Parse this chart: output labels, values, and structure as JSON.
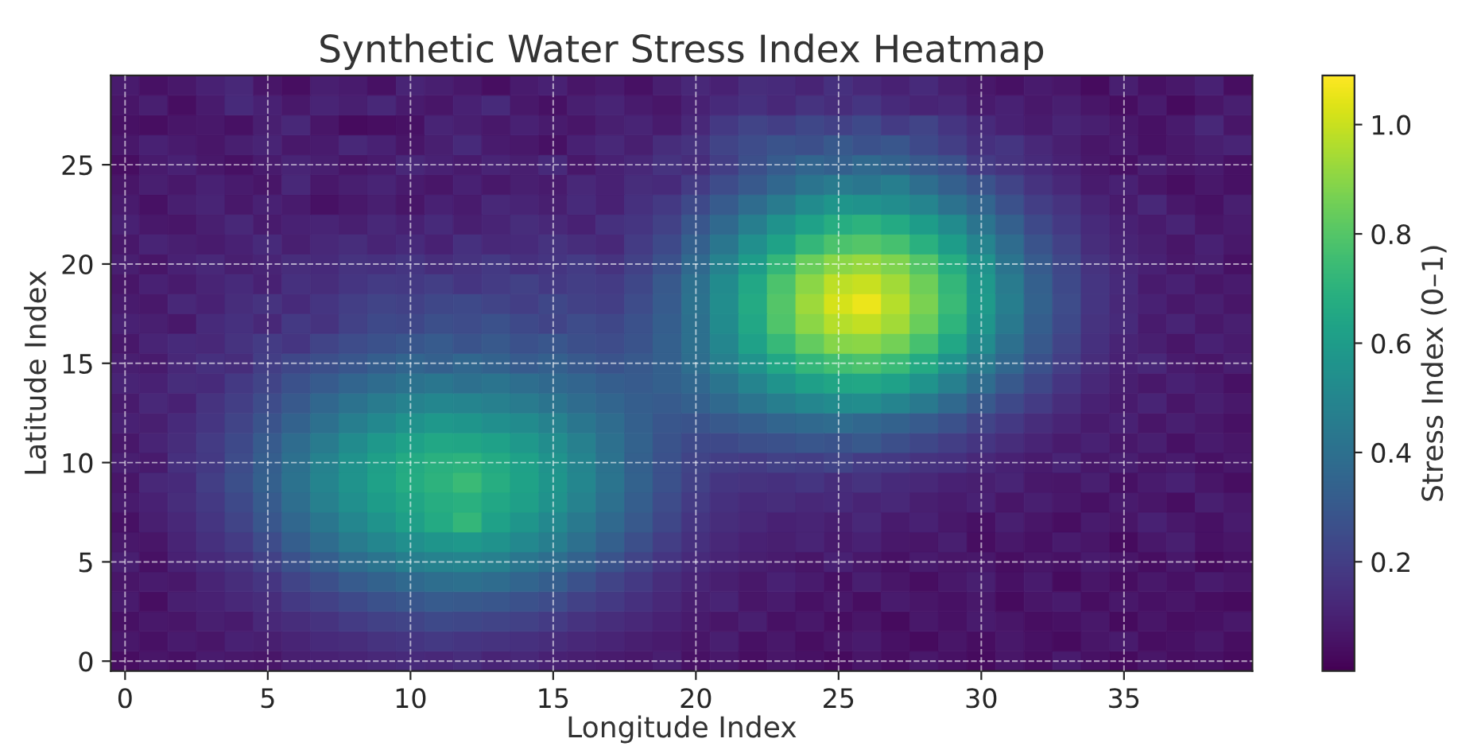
{
  "chart_data": {
    "type": "heatmap",
    "title": "Synthetic Water Stress Index Heatmap",
    "xlabel": "Longitude Index",
    "ylabel": "Latitude Index",
    "clabel": "Stress Index (0–1)",
    "categories": [
      "0",
      null,
      null,
      null,
      null,
      "5",
      null,
      null,
      null,
      null,
      "10",
      null,
      null,
      null,
      null,
      "15",
      null,
      null,
      null,
      null,
      "20",
      null,
      null,
      null,
      null,
      "25",
      null,
      null,
      null,
      null,
      "30",
      null,
      null,
      null,
      null,
      "35",
      null,
      null,
      null,
      null
    ],
    "y_categories": [
      null,
      null,
      null,
      null,
      "25",
      null,
      null,
      null,
      null,
      "20",
      null,
      null,
      null,
      null,
      "15",
      null,
      null,
      null,
      null,
      "10",
      null,
      null,
      null,
      null,
      "5",
      null,
      null,
      null,
      null,
      "0"
    ],
    "clim": [
      0.0,
      1.09
    ],
    "cticks": [
      0.2,
      0.4,
      0.6,
      0.8,
      {
        "value": 1.0,
        "label": "1.0"
      }
    ],
    "grid": true,
    "cells": [
      [
        0.08,
        0.05,
        0.07,
        0.1,
        0.12,
        0.06,
        0.04,
        0.09,
        0.08,
        0.05,
        0.11,
        0.09,
        0.07,
        0.04,
        0.08,
        0.1,
        0.06,
        0.08,
        0.05,
        0.09,
        0.12,
        0.1,
        0.14,
        0.13,
        0.11,
        0.15,
        0.12,
        0.1,
        0.13,
        0.09,
        0.07,
        0.05,
        0.08,
        0.06,
        0.03,
        0.09,
        0.05,
        0.07,
        0.1,
        0.04
      ],
      [
        0.06,
        0.09,
        0.04,
        0.08,
        0.13,
        0.1,
        0.07,
        0.11,
        0.09,
        0.12,
        0.08,
        0.06,
        0.1,
        0.13,
        0.07,
        0.05,
        0.09,
        0.11,
        0.08,
        0.06,
        0.1,
        0.13,
        0.15,
        0.12,
        0.16,
        0.14,
        0.17,
        0.13,
        0.11,
        0.12,
        0.08,
        0.1,
        0.07,
        0.09,
        0.06,
        0.04,
        0.08,
        0.03,
        0.06,
        0.09
      ],
      [
        0.05,
        0.04,
        0.06,
        0.07,
        0.05,
        0.09,
        0.12,
        0.06,
        0.03,
        0.04,
        0.05,
        0.11,
        0.09,
        0.07,
        0.1,
        0.08,
        0.06,
        0.09,
        0.11,
        0.08,
        0.12,
        0.18,
        0.22,
        0.2,
        0.23,
        0.21,
        0.24,
        0.19,
        0.22,
        0.17,
        0.13,
        0.1,
        0.08,
        0.11,
        0.09,
        0.07,
        0.05,
        0.08,
        0.12,
        0.06
      ],
      [
        0.07,
        0.1,
        0.08,
        0.06,
        0.09,
        0.11,
        0.07,
        0.08,
        0.12,
        0.1,
        0.06,
        0.09,
        0.13,
        0.08,
        0.07,
        0.05,
        0.1,
        0.12,
        0.09,
        0.14,
        0.16,
        0.22,
        0.25,
        0.28,
        0.26,
        0.3,
        0.27,
        0.29,
        0.24,
        0.2,
        0.15,
        0.17,
        0.12,
        0.09,
        0.06,
        0.08,
        0.05,
        0.07,
        0.09,
        0.11
      ],
      [
        0.04,
        0.08,
        0.1,
        0.07,
        0.05,
        0.08,
        0.11,
        0.09,
        0.06,
        0.08,
        0.12,
        0.1,
        0.08,
        0.11,
        0.09,
        0.13,
        0.07,
        0.1,
        0.12,
        0.16,
        0.14,
        0.2,
        0.26,
        0.31,
        0.35,
        0.33,
        0.37,
        0.34,
        0.3,
        0.27,
        0.19,
        0.16,
        0.13,
        0.1,
        0.07,
        0.05,
        0.09,
        0.06,
        0.08,
        0.05
      ],
      [
        0.06,
        0.09,
        0.07,
        0.1,
        0.08,
        0.06,
        0.12,
        0.07,
        0.09,
        0.11,
        0.08,
        0.06,
        0.1,
        0.07,
        0.09,
        0.08,
        0.12,
        0.1,
        0.14,
        0.13,
        0.19,
        0.25,
        0.3,
        0.36,
        0.42,
        0.45,
        0.43,
        0.46,
        0.39,
        0.33,
        0.28,
        0.22,
        0.16,
        0.12,
        0.08,
        0.1,
        0.06,
        0.04,
        0.07,
        0.05
      ],
      [
        0.08,
        0.05,
        0.09,
        0.11,
        0.07,
        0.1,
        0.08,
        0.05,
        0.07,
        0.09,
        0.06,
        0.1,
        0.08,
        0.12,
        0.11,
        0.09,
        0.13,
        0.1,
        0.15,
        0.18,
        0.24,
        0.31,
        0.38,
        0.45,
        0.52,
        0.57,
        0.55,
        0.53,
        0.49,
        0.41,
        0.35,
        0.27,
        0.2,
        0.16,
        0.11,
        0.08,
        0.12,
        0.07,
        0.05,
        0.09
      ],
      [
        0.1,
        0.07,
        0.06,
        0.09,
        0.12,
        0.08,
        0.1,
        0.11,
        0.09,
        0.12,
        0.1,
        0.13,
        0.09,
        0.11,
        0.14,
        0.12,
        0.1,
        0.15,
        0.17,
        0.21,
        0.29,
        0.37,
        0.46,
        0.55,
        0.62,
        0.68,
        0.7,
        0.66,
        0.6,
        0.52,
        0.42,
        0.33,
        0.24,
        0.18,
        0.13,
        0.1,
        0.08,
        0.11,
        0.06,
        0.08
      ],
      [
        0.07,
        0.11,
        0.09,
        0.08,
        0.1,
        0.13,
        0.09,
        0.12,
        0.14,
        0.11,
        0.13,
        0.1,
        0.15,
        0.12,
        0.13,
        0.16,
        0.14,
        0.12,
        0.19,
        0.24,
        0.33,
        0.43,
        0.54,
        0.63,
        0.72,
        0.78,
        0.8,
        0.77,
        0.69,
        0.6,
        0.49,
        0.38,
        0.28,
        0.21,
        0.14,
        0.11,
        0.09,
        0.06,
        0.1,
        0.07
      ],
      [
        0.09,
        0.06,
        0.1,
        0.12,
        0.09,
        0.11,
        0.14,
        0.13,
        0.16,
        0.15,
        0.17,
        0.14,
        0.16,
        0.18,
        0.15,
        0.17,
        0.19,
        0.16,
        0.21,
        0.27,
        0.37,
        0.48,
        0.6,
        0.72,
        0.84,
        0.9,
        0.92,
        0.88,
        0.8,
        0.68,
        0.55,
        0.42,
        0.31,
        0.23,
        0.16,
        0.12,
        0.1,
        0.07,
        0.09,
        0.05
      ],
      [
        0.06,
        0.1,
        0.08,
        0.11,
        0.13,
        0.1,
        0.15,
        0.14,
        0.17,
        0.19,
        0.18,
        0.2,
        0.17,
        0.19,
        0.21,
        0.18,
        0.2,
        0.19,
        0.23,
        0.3,
        0.4,
        0.52,
        0.65,
        0.78,
        0.9,
        0.98,
        1.0,
        0.94,
        0.85,
        0.72,
        0.58,
        0.45,
        0.33,
        0.24,
        0.17,
        0.13,
        0.08,
        0.1,
        0.06,
        0.08
      ],
      [
        0.08,
        0.07,
        0.12,
        0.1,
        0.14,
        0.16,
        0.13,
        0.17,
        0.2,
        0.22,
        0.21,
        0.23,
        0.24,
        0.22,
        0.2,
        0.23,
        0.21,
        0.2,
        0.25,
        0.31,
        0.41,
        0.53,
        0.66,
        0.8,
        0.93,
        1.02,
        1.06,
        0.97,
        0.87,
        0.74,
        0.59,
        0.46,
        0.34,
        0.25,
        0.17,
        0.12,
        0.1,
        0.07,
        0.09,
        0.06
      ],
      [
        0.1,
        0.09,
        0.07,
        0.13,
        0.15,
        0.12,
        0.18,
        0.16,
        0.21,
        0.24,
        0.23,
        0.26,
        0.25,
        0.27,
        0.24,
        0.22,
        0.25,
        0.23,
        0.27,
        0.32,
        0.4,
        0.52,
        0.65,
        0.79,
        0.9,
        0.97,
        0.99,
        0.94,
        0.84,
        0.71,
        0.57,
        0.44,
        0.32,
        0.24,
        0.16,
        0.13,
        0.08,
        0.11,
        0.07,
        0.09
      ],
      [
        0.07,
        0.11,
        0.13,
        0.12,
        0.16,
        0.19,
        0.17,
        0.22,
        0.25,
        0.27,
        0.29,
        0.31,
        0.28,
        0.3,
        0.27,
        0.29,
        0.26,
        0.25,
        0.28,
        0.33,
        0.4,
        0.5,
        0.62,
        0.73,
        0.83,
        0.89,
        0.9,
        0.86,
        0.77,
        0.65,
        0.52,
        0.4,
        0.3,
        0.22,
        0.15,
        0.11,
        0.09,
        0.06,
        0.1,
        0.08
      ],
      [
        0.09,
        0.08,
        0.12,
        0.15,
        0.14,
        0.2,
        0.23,
        0.26,
        0.29,
        0.32,
        0.35,
        0.33,
        0.36,
        0.34,
        0.31,
        0.33,
        0.3,
        0.28,
        0.3,
        0.33,
        0.39,
        0.47,
        0.56,
        0.65,
        0.72,
        0.76,
        0.78,
        0.74,
        0.66,
        0.56,
        0.45,
        0.36,
        0.27,
        0.2,
        0.14,
        0.1,
        0.12,
        0.08,
        0.06,
        0.09
      ],
      [
        0.11,
        0.1,
        0.14,
        0.13,
        0.18,
        0.22,
        0.27,
        0.31,
        0.35,
        0.38,
        0.41,
        0.43,
        0.4,
        0.42,
        0.39,
        0.37,
        0.35,
        0.32,
        0.31,
        0.33,
        0.36,
        0.42,
        0.49,
        0.56,
        0.61,
        0.64,
        0.65,
        0.62,
        0.56,
        0.47,
        0.38,
        0.3,
        0.23,
        0.17,
        0.12,
        0.09,
        0.07,
        0.1,
        0.08,
        0.05
      ],
      [
        0.08,
        0.12,
        0.1,
        0.16,
        0.2,
        0.25,
        0.3,
        0.36,
        0.41,
        0.45,
        0.48,
        0.5,
        0.49,
        0.47,
        0.45,
        0.42,
        0.38,
        0.35,
        0.32,
        0.31,
        0.33,
        0.37,
        0.42,
        0.46,
        0.5,
        0.52,
        0.53,
        0.49,
        0.44,
        0.37,
        0.3,
        0.24,
        0.19,
        0.14,
        0.1,
        0.08,
        0.11,
        0.06,
        0.09,
        0.07
      ],
      [
        0.1,
        0.09,
        0.13,
        0.17,
        0.22,
        0.28,
        0.34,
        0.4,
        0.46,
        0.51,
        0.55,
        0.58,
        0.57,
        0.54,
        0.52,
        0.48,
        0.43,
        0.38,
        0.33,
        0.29,
        0.28,
        0.3,
        0.32,
        0.35,
        0.37,
        0.38,
        0.36,
        0.34,
        0.31,
        0.27,
        0.22,
        0.18,
        0.14,
        0.11,
        0.08,
        0.1,
        0.06,
        0.09,
        0.07,
        0.05
      ],
      [
        0.07,
        0.11,
        0.14,
        0.19,
        0.24,
        0.31,
        0.38,
        0.45,
        0.52,
        0.58,
        0.62,
        0.65,
        0.64,
        0.62,
        0.58,
        0.53,
        0.47,
        0.4,
        0.34,
        0.28,
        0.24,
        0.24,
        0.26,
        0.27,
        0.29,
        0.28,
        0.3,
        0.26,
        0.23,
        0.2,
        0.17,
        0.14,
        0.11,
        0.08,
        0.1,
        0.07,
        0.09,
        0.05,
        0.08,
        0.06
      ],
      [
        0.09,
        0.08,
        0.15,
        0.18,
        0.25,
        0.32,
        0.4,
        0.48,
        0.55,
        0.61,
        0.66,
        0.69,
        0.7,
        0.66,
        0.62,
        0.56,
        0.49,
        0.41,
        0.33,
        0.27,
        0.22,
        0.2,
        0.19,
        0.21,
        0.2,
        0.22,
        0.19,
        0.18,
        0.16,
        0.15,
        0.12,
        0.1,
        0.08,
        0.11,
        0.07,
        0.09,
        0.06,
        0.08,
        0.05,
        0.07
      ],
      [
        0.06,
        0.12,
        0.13,
        0.2,
        0.26,
        0.33,
        0.41,
        0.49,
        0.56,
        0.62,
        0.67,
        0.7,
        0.74,
        0.68,
        0.63,
        0.57,
        0.5,
        0.42,
        0.34,
        0.27,
        0.21,
        0.17,
        0.16,
        0.15,
        0.17,
        0.14,
        0.16,
        0.13,
        0.12,
        0.1,
        0.09,
        0.11,
        0.07,
        0.06,
        0.09,
        0.05,
        0.08,
        0.1,
        0.06,
        0.04
      ],
      [
        0.08,
        0.1,
        0.14,
        0.18,
        0.24,
        0.31,
        0.39,
        0.47,
        0.54,
        0.6,
        0.64,
        0.68,
        0.69,
        0.65,
        0.61,
        0.55,
        0.48,
        0.4,
        0.32,
        0.25,
        0.19,
        0.15,
        0.13,
        0.14,
        0.12,
        0.13,
        0.11,
        0.12,
        0.09,
        0.08,
        0.1,
        0.06,
        0.09,
        0.07,
        0.05,
        0.08,
        0.06,
        0.04,
        0.09,
        0.07
      ],
      [
        0.05,
        0.09,
        0.12,
        0.17,
        0.22,
        0.29,
        0.36,
        0.43,
        0.5,
        0.56,
        0.61,
        0.66,
        0.72,
        0.62,
        0.57,
        0.51,
        0.44,
        0.37,
        0.3,
        0.23,
        0.17,
        0.14,
        0.12,
        0.1,
        0.11,
        0.09,
        0.12,
        0.08,
        0.1,
        0.07,
        0.05,
        0.09,
        0.06,
        0.04,
        0.08,
        0.06,
        0.1,
        0.07,
        0.05,
        0.08
      ],
      [
        0.07,
        0.06,
        0.11,
        0.15,
        0.19,
        0.25,
        0.32,
        0.38,
        0.45,
        0.5,
        0.54,
        0.57,
        0.58,
        0.55,
        0.51,
        0.46,
        0.4,
        0.33,
        0.26,
        0.2,
        0.15,
        0.12,
        0.1,
        0.09,
        0.11,
        0.08,
        0.1,
        0.07,
        0.06,
        0.09,
        0.04,
        0.07,
        0.05,
        0.08,
        0.06,
        0.03,
        0.07,
        0.09,
        0.05,
        0.06
      ],
      [
        0.09,
        0.05,
        0.1,
        0.13,
        0.16,
        0.21,
        0.27,
        0.32,
        0.38,
        0.42,
        0.46,
        0.48,
        0.49,
        0.47,
        0.43,
        0.39,
        0.34,
        0.28,
        0.22,
        0.17,
        0.13,
        0.11,
        0.09,
        0.08,
        0.06,
        0.1,
        0.07,
        0.05,
        0.08,
        0.06,
        0.07,
        0.04,
        0.06,
        0.05,
        0.08,
        0.06,
        0.04,
        0.07,
        0.03,
        0.05
      ],
      [
        0.06,
        0.08,
        0.07,
        0.11,
        0.14,
        0.17,
        0.22,
        0.26,
        0.31,
        0.34,
        0.37,
        0.39,
        0.4,
        0.38,
        0.35,
        0.32,
        0.27,
        0.22,
        0.18,
        0.14,
        0.11,
        0.09,
        0.07,
        0.1,
        0.08,
        0.05,
        0.09,
        0.06,
        0.04,
        0.07,
        0.09,
        0.05,
        0.08,
        0.03,
        0.06,
        0.04,
        0.07,
        0.05,
        0.08,
        0.06
      ],
      [
        0.08,
        0.04,
        0.09,
        0.1,
        0.12,
        0.14,
        0.18,
        0.21,
        0.24,
        0.27,
        0.29,
        0.31,
        0.3,
        0.29,
        0.27,
        0.25,
        0.21,
        0.18,
        0.15,
        0.12,
        0.09,
        0.11,
        0.06,
        0.08,
        0.05,
        0.07,
        0.04,
        0.08,
        0.06,
        0.05,
        0.07,
        0.03,
        0.06,
        0.08,
        0.04,
        0.07,
        0.05,
        0.06,
        0.04,
        0.03
      ],
      [
        0.05,
        0.07,
        0.06,
        0.09,
        0.08,
        0.12,
        0.14,
        0.16,
        0.19,
        0.21,
        0.22,
        0.24,
        0.23,
        0.22,
        0.21,
        0.19,
        0.16,
        0.14,
        0.12,
        0.1,
        0.08,
        0.06,
        0.09,
        0.05,
        0.07,
        0.04,
        0.06,
        0.03,
        0.07,
        0.05,
        0.08,
        0.06,
        0.04,
        0.05,
        0.07,
        0.03,
        0.06,
        0.04,
        0.05,
        0.07
      ],
      [
        0.07,
        0.05,
        0.08,
        0.06,
        0.1,
        0.09,
        0.11,
        0.13,
        0.14,
        0.16,
        0.17,
        0.18,
        0.17,
        0.16,
        0.15,
        0.14,
        0.12,
        0.11,
        0.09,
        0.08,
        0.06,
        0.09,
        0.05,
        0.07,
        0.04,
        0.06,
        0.08,
        0.05,
        0.03,
        0.06,
        0.04,
        0.07,
        0.05,
        0.03,
        0.06,
        0.08,
        0.04,
        0.05,
        0.07,
        0.04
      ],
      [
        0.04,
        0.06,
        0.05,
        0.08,
        0.07,
        0.06,
        0.09,
        0.1,
        0.11,
        0.12,
        0.13,
        0.12,
        0.14,
        0.11,
        0.12,
        0.1,
        0.09,
        0.08,
        0.07,
        0.09,
        0.05,
        0.07,
        0.04,
        0.06,
        0.05,
        0.03,
        0.06,
        0.04,
        0.07,
        0.05,
        0.03,
        0.06,
        0.04,
        0.08,
        0.05,
        0.03,
        0.06,
        0.04,
        0.05,
        0.03
      ]
    ]
  }
}
